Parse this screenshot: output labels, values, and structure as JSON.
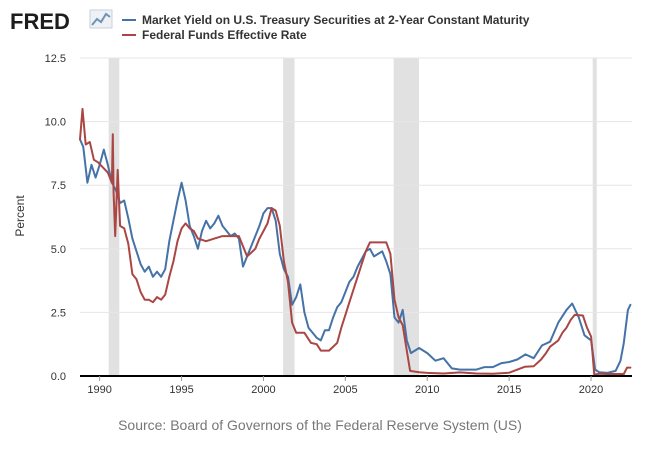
{
  "logo": {
    "text": "FRED",
    "icon": "trend-line-icon"
  },
  "colors": {
    "treasury": "#4572a7",
    "fedfunds": "#aa4643",
    "recession": "#e1e1e1",
    "grid": "#e6e6e6",
    "axis": "#000000"
  },
  "chart_data": {
    "type": "line",
    "title": "",
    "xlabel": "",
    "ylabel": "Percent",
    "xlim": [
      1988.8,
      2022.5
    ],
    "ylim": [
      0,
      12.5
    ],
    "x_ticks": [
      1990,
      1995,
      2000,
      2005,
      2010,
      2015,
      2020
    ],
    "x_tick_labels": [
      "1990",
      "1995",
      "2000",
      "2005",
      "2010",
      "2015",
      "2020"
    ],
    "y_ticks": [
      0,
      2.5,
      5,
      7.5,
      10,
      12.5
    ],
    "y_tick_labels": [
      "0.0",
      "2.5",
      "5.0",
      "7.5",
      "10.0",
      "12.5"
    ],
    "grid": true,
    "legend_position": "top",
    "recessions": [
      [
        1990.55,
        1991.2
      ],
      [
        2001.2,
        2001.9
      ],
      [
        2007.95,
        2009.5
      ],
      [
        2020.1,
        2020.35
      ]
    ],
    "series": [
      {
        "name": "Market Yield on U.S. Treasury Securities at 2-Year Constant Maturity",
        "color": "#4572a7",
        "points": [
          [
            1988.8,
            9.3
          ],
          [
            1989.0,
            9.0
          ],
          [
            1989.25,
            7.6
          ],
          [
            1989.5,
            8.3
          ],
          [
            1989.75,
            7.8
          ],
          [
            1990.0,
            8.3
          ],
          [
            1990.25,
            8.9
          ],
          [
            1990.5,
            8.3
          ],
          [
            1990.75,
            7.6
          ],
          [
            1991.0,
            7.3
          ],
          [
            1991.25,
            6.8
          ],
          [
            1991.5,
            6.9
          ],
          [
            1991.75,
            6.2
          ],
          [
            1992.0,
            5.4
          ],
          [
            1992.25,
            4.9
          ],
          [
            1992.5,
            4.4
          ],
          [
            1992.75,
            4.1
          ],
          [
            1993.0,
            4.3
          ],
          [
            1993.25,
            3.9
          ],
          [
            1993.5,
            4.1
          ],
          [
            1993.75,
            3.9
          ],
          [
            1994.0,
            4.2
          ],
          [
            1994.25,
            5.3
          ],
          [
            1994.5,
            6.1
          ],
          [
            1994.75,
            6.9
          ],
          [
            1995.0,
            7.6
          ],
          [
            1995.25,
            6.9
          ],
          [
            1995.5,
            5.9
          ],
          [
            1995.75,
            5.5
          ],
          [
            1996.0,
            5.0
          ],
          [
            1996.25,
            5.7
          ],
          [
            1996.5,
            6.1
          ],
          [
            1996.75,
            5.8
          ],
          [
            1997.0,
            6.0
          ],
          [
            1997.25,
            6.3
          ],
          [
            1997.5,
            5.9
          ],
          [
            1997.75,
            5.7
          ],
          [
            1998.0,
            5.5
          ],
          [
            1998.25,
            5.6
          ],
          [
            1998.5,
            5.4
          ],
          [
            1998.75,
            4.3
          ],
          [
            1999.0,
            4.7
          ],
          [
            1999.25,
            5.1
          ],
          [
            1999.5,
            5.5
          ],
          [
            1999.75,
            5.9
          ],
          [
            2000.0,
            6.4
          ],
          [
            2000.25,
            6.6
          ],
          [
            2000.5,
            6.6
          ],
          [
            2000.75,
            6.1
          ],
          [
            2001.0,
            4.8
          ],
          [
            2001.25,
            4.2
          ],
          [
            2001.5,
            3.9
          ],
          [
            2001.75,
            2.8
          ],
          [
            2002.0,
            3.1
          ],
          [
            2002.25,
            3.6
          ],
          [
            2002.5,
            2.5
          ],
          [
            2002.75,
            1.9
          ],
          [
            2003.0,
            1.7
          ],
          [
            2003.25,
            1.5
          ],
          [
            2003.5,
            1.4
          ],
          [
            2003.75,
            1.8
          ],
          [
            2004.0,
            1.8
          ],
          [
            2004.25,
            2.3
          ],
          [
            2004.5,
            2.7
          ],
          [
            2004.75,
            2.9
          ],
          [
            2005.0,
            3.3
          ],
          [
            2005.25,
            3.7
          ],
          [
            2005.5,
            3.9
          ],
          [
            2005.75,
            4.3
          ],
          [
            2006.0,
            4.6
          ],
          [
            2006.25,
            4.9
          ],
          [
            2006.5,
            5.0
          ],
          [
            2006.75,
            4.7
          ],
          [
            2007.0,
            4.8
          ],
          [
            2007.25,
            4.9
          ],
          [
            2007.5,
            4.5
          ],
          [
            2007.75,
            4.0
          ],
          [
            2008.0,
            2.3
          ],
          [
            2008.25,
            2.1
          ],
          [
            2008.5,
            2.6
          ],
          [
            2008.75,
            1.4
          ],
          [
            2009.0,
            0.9
          ],
          [
            2009.5,
            1.1
          ],
          [
            2010.0,
            0.9
          ],
          [
            2010.5,
            0.6
          ],
          [
            2011.0,
            0.7
          ],
          [
            2011.5,
            0.3
          ],
          [
            2012.0,
            0.25
          ],
          [
            2012.5,
            0.25
          ],
          [
            2013.0,
            0.25
          ],
          [
            2013.5,
            0.35
          ],
          [
            2014.0,
            0.35
          ],
          [
            2014.5,
            0.5
          ],
          [
            2015.0,
            0.55
          ],
          [
            2015.5,
            0.65
          ],
          [
            2016.0,
            0.85
          ],
          [
            2016.5,
            0.7
          ],
          [
            2017.0,
            1.2
          ],
          [
            2017.5,
            1.35
          ],
          [
            2018.0,
            2.1
          ],
          [
            2018.5,
            2.6
          ],
          [
            2018.85,
            2.85
          ],
          [
            2019.25,
            2.3
          ],
          [
            2019.6,
            1.6
          ],
          [
            2020.0,
            1.4
          ],
          [
            2020.25,
            0.25
          ],
          [
            2020.5,
            0.15
          ],
          [
            2021.0,
            0.12
          ],
          [
            2021.5,
            0.2
          ],
          [
            2021.8,
            0.6
          ],
          [
            2022.0,
            1.3
          ],
          [
            2022.25,
            2.6
          ],
          [
            2022.4,
            2.8
          ]
        ]
      },
      {
        "name": "Federal Funds Effective Rate",
        "color": "#aa4643",
        "points": [
          [
            1988.8,
            9.3
          ],
          [
            1988.95,
            10.5
          ],
          [
            1989.15,
            9.1
          ],
          [
            1989.4,
            9.2
          ],
          [
            1989.65,
            8.5
          ],
          [
            1989.9,
            8.4
          ],
          [
            1990.2,
            8.2
          ],
          [
            1990.5,
            8.0
          ],
          [
            1990.75,
            7.6
          ],
          [
            1990.8,
            9.5
          ],
          [
            1990.85,
            7.2
          ],
          [
            1990.95,
            5.5
          ],
          [
            1991.1,
            8.1
          ],
          [
            1991.25,
            5.9
          ],
          [
            1991.5,
            5.8
          ],
          [
            1991.75,
            5.2
          ],
          [
            1992.0,
            4.0
          ],
          [
            1992.25,
            3.8
          ],
          [
            1992.5,
            3.3
          ],
          [
            1992.75,
            3.0
          ],
          [
            1993.0,
            3.0
          ],
          [
            1993.25,
            2.9
          ],
          [
            1993.5,
            3.1
          ],
          [
            1993.75,
            3.0
          ],
          [
            1994.0,
            3.2
          ],
          [
            1994.25,
            3.9
          ],
          [
            1994.5,
            4.5
          ],
          [
            1994.75,
            5.3
          ],
          [
            1995.0,
            5.8
          ],
          [
            1995.25,
            6.0
          ],
          [
            1995.5,
            5.8
          ],
          [
            1995.75,
            5.7
          ],
          [
            1996.0,
            5.4
          ],
          [
            1996.5,
            5.3
          ],
          [
            1997.0,
            5.4
          ],
          [
            1997.5,
            5.5
          ],
          [
            1998.0,
            5.5
          ],
          [
            1998.5,
            5.5
          ],
          [
            1998.75,
            5.1
          ],
          [
            1999.0,
            4.7
          ],
          [
            1999.5,
            5.0
          ],
          [
            1999.75,
            5.4
          ],
          [
            2000.0,
            5.7
          ],
          [
            2000.25,
            6.0
          ],
          [
            2000.5,
            6.6
          ],
          [
            2000.75,
            6.5
          ],
          [
            2001.0,
            5.9
          ],
          [
            2001.25,
            4.5
          ],
          [
            2001.5,
            3.7
          ],
          [
            2001.75,
            2.1
          ],
          [
            2002.0,
            1.7
          ],
          [
            2002.5,
            1.7
          ],
          [
            2002.9,
            1.3
          ],
          [
            2003.25,
            1.25
          ],
          [
            2003.5,
            1.0
          ],
          [
            2004.0,
            1.0
          ],
          [
            2004.5,
            1.3
          ],
          [
            2004.75,
            1.9
          ],
          [
            2005.0,
            2.4
          ],
          [
            2005.25,
            2.9
          ],
          [
            2005.5,
            3.4
          ],
          [
            2005.75,
            3.9
          ],
          [
            2006.0,
            4.4
          ],
          [
            2006.25,
            4.9
          ],
          [
            2006.5,
            5.25
          ],
          [
            2007.0,
            5.25
          ],
          [
            2007.5,
            5.25
          ],
          [
            2007.75,
            4.8
          ],
          [
            2008.0,
            3.0
          ],
          [
            2008.25,
            2.3
          ],
          [
            2008.5,
            2.0
          ],
          [
            2008.75,
            1.0
          ],
          [
            2008.95,
            0.2
          ],
          [
            2009.5,
            0.15
          ],
          [
            2010.0,
            0.12
          ],
          [
            2011.0,
            0.1
          ],
          [
            2012.0,
            0.14
          ],
          [
            2013.0,
            0.1
          ],
          [
            2014.0,
            0.09
          ],
          [
            2015.0,
            0.13
          ],
          [
            2015.95,
            0.36
          ],
          [
            2016.5,
            0.38
          ],
          [
            2016.95,
            0.65
          ],
          [
            2017.25,
            0.9
          ],
          [
            2017.5,
            1.15
          ],
          [
            2018.0,
            1.4
          ],
          [
            2018.25,
            1.7
          ],
          [
            2018.5,
            1.9
          ],
          [
            2018.75,
            2.2
          ],
          [
            2019.0,
            2.4
          ],
          [
            2019.5,
            2.38
          ],
          [
            2019.75,
            1.9
          ],
          [
            2020.0,
            1.55
          ],
          [
            2020.2,
            0.05
          ],
          [
            2020.5,
            0.09
          ],
          [
            2021.0,
            0.08
          ],
          [
            2021.5,
            0.08
          ],
          [
            2022.0,
            0.08
          ],
          [
            2022.2,
            0.33
          ],
          [
            2022.4,
            0.33
          ]
        ]
      }
    ]
  },
  "source": "Source: Board of Governors of the Federal Reserve System (US)"
}
